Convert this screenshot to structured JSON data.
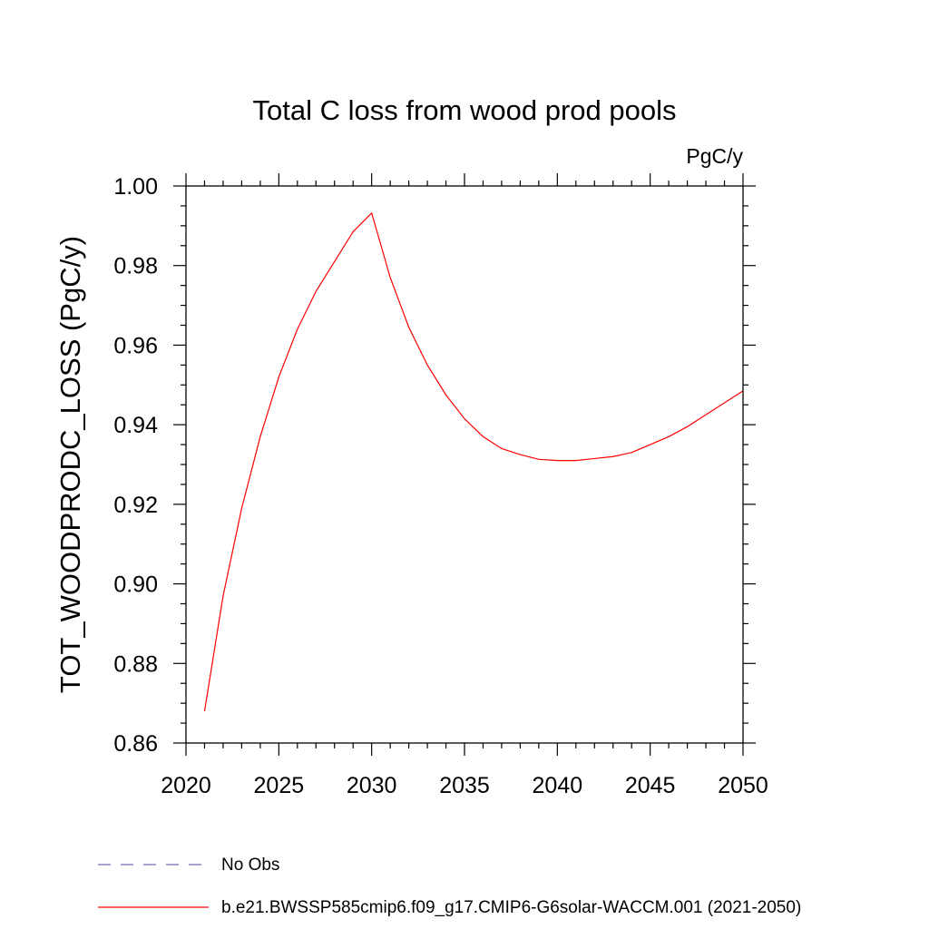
{
  "chart_data": {
    "type": "line",
    "title": "Total C loss from wood prod pools",
    "units": "PgC/y",
    "ylabel": "TOT_WOODPRODC_LOSS  (PgC/y)",
    "xlabel": "",
    "xlim": [
      2020,
      2050
    ],
    "ylim": [
      0.86,
      1.0
    ],
    "x_ticks": [
      2020,
      2025,
      2030,
      2035,
      2040,
      2045,
      2050
    ],
    "y_ticks": [
      0.86,
      0.88,
      0.9,
      0.92,
      0.94,
      0.96,
      0.98,
      1.0
    ],
    "x_tick_labels": [
      "2020",
      "2025",
      "2030",
      "2035",
      "2040",
      "2045",
      "2050"
    ],
    "y_tick_labels": [
      "0.86",
      "0.88",
      "0.90",
      "0.92",
      "0.94",
      "0.96",
      "0.98",
      "1.00"
    ],
    "grid": false,
    "series": [
      {
        "name": "b.e21.BWSSP585cmip6.f09_g17.CMIP6-G6solar-WACCM.001 (2021-2050)",
        "color": "#ff0000",
        "style": "solid",
        "x": [
          2021,
          2022,
          2023,
          2024,
          2025,
          2026,
          2027,
          2028,
          2029,
          2030,
          2031,
          2032,
          2033,
          2034,
          2035,
          2036,
          2037,
          2038,
          2039,
          2040,
          2041,
          2042,
          2043,
          2044,
          2045,
          2046,
          2047,
          2048,
          2049,
          2050
        ],
        "y": [
          0.868,
          0.897,
          0.919,
          0.937,
          0.952,
          0.964,
          0.9735,
          0.981,
          0.9885,
          0.9932,
          0.977,
          0.9645,
          0.955,
          0.9475,
          0.9415,
          0.937,
          0.934,
          0.9325,
          0.9313,
          0.931,
          0.931,
          0.9315,
          0.932,
          0.933,
          0.935,
          0.937,
          0.9395,
          0.9425,
          0.9455,
          0.9485
        ]
      }
    ],
    "legend": {
      "placement": "bottom",
      "entries": [
        {
          "label": "No Obs",
          "color": "#7b68b0",
          "style": "dashed"
        },
        {
          "label": "b.e21.BWSSP585cmip6.f09_g17.CMIP6-G6solar-WACCM.001 (2021-2050)",
          "color": "#ff0000",
          "style": "solid"
        }
      ]
    }
  }
}
